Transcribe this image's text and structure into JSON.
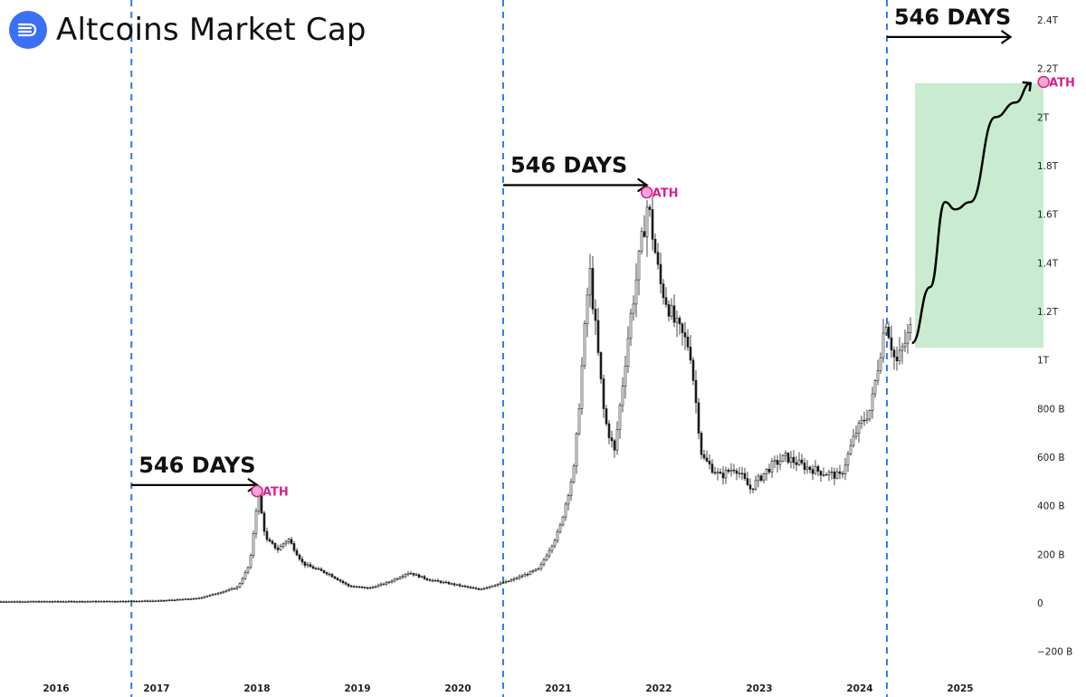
{
  "header": {
    "title": "Altcoins Market Cap",
    "logo_icon": "stream-lines-logo-icon",
    "logo_color": "#3b6ff5"
  },
  "chart_data": {
    "type": "candlestick",
    "title": "Altcoins Market Cap",
    "y_axis": {
      "position": "right",
      "ticks": [
        {
          "v": -200,
          "label": "−200 B"
        },
        {
          "v": 0,
          "label": "0"
        },
        {
          "v": 200,
          "label": "200 B"
        },
        {
          "v": 400,
          "label": "400 B"
        },
        {
          "v": 600,
          "label": "600 B"
        },
        {
          "v": 800,
          "label": "800 B"
        },
        {
          "v": 1000,
          "label": "1T"
        },
        {
          "v": 1200,
          "label": "1.2T"
        },
        {
          "v": 1400,
          "label": "1.4T"
        },
        {
          "v": 1600,
          "label": "1.6T"
        },
        {
          "v": 1800,
          "label": "1.8T"
        },
        {
          "v": 2000,
          "label": "2T"
        },
        {
          "v": 2200,
          "label": "2.2T"
        },
        {
          "v": 2400,
          "label": "2.4T"
        }
      ],
      "unit": "billions USD"
    },
    "x_axis": {
      "labels": [
        "2016",
        "2017",
        "2018",
        "2019",
        "2020",
        "2021",
        "2022",
        "2023",
        "2024",
        "2025"
      ]
    },
    "series": [
      {
        "price_points": [
          [
            2015.5,
            5
          ],
          [
            2016.5,
            6
          ],
          [
            2017.0,
            8
          ],
          [
            2017.4,
            18
          ],
          [
            2017.6,
            40
          ],
          [
            2017.8,
            65
          ],
          [
            2017.92,
            160
          ],
          [
            2018.0,
            455
          ],
          [
            2018.08,
            260
          ],
          [
            2018.2,
            220
          ],
          [
            2018.3,
            265
          ],
          [
            2018.45,
            160
          ],
          [
            2018.7,
            120
          ],
          [
            2018.9,
            70
          ],
          [
            2019.1,
            60
          ],
          [
            2019.3,
            85
          ],
          [
            2019.5,
            125
          ],
          [
            2019.7,
            95
          ],
          [
            2019.9,
            80
          ],
          [
            2020.2,
            55
          ],
          [
            2020.5,
            90
          ],
          [
            2020.8,
            140
          ],
          [
            2021.0,
            300
          ],
          [
            2021.15,
            560
          ],
          [
            2021.3,
            1380
          ],
          [
            2021.45,
            760
          ],
          [
            2021.55,
            620
          ],
          [
            2021.7,
            1150
          ],
          [
            2021.88,
            1650
          ],
          [
            2022.0,
            1320
          ],
          [
            2022.15,
            1150
          ],
          [
            2022.3,
            1050
          ],
          [
            2022.42,
            600
          ],
          [
            2022.6,
            520
          ],
          [
            2022.75,
            560
          ],
          [
            2022.9,
            470
          ],
          [
            2023.1,
            560
          ],
          [
            2023.25,
            600
          ],
          [
            2023.45,
            560
          ],
          [
            2023.6,
            540
          ],
          [
            2023.8,
            520
          ],
          [
            2023.95,
            700
          ],
          [
            2024.1,
            800
          ],
          [
            2024.25,
            1170
          ],
          [
            2024.35,
            980
          ],
          [
            2024.5,
            1130
          ]
        ]
      }
    ],
    "projection": [
      [
        2024.52,
        1070
      ],
      [
        2024.7,
        1300
      ],
      [
        2024.85,
        1650
      ],
      [
        2024.95,
        1620
      ],
      [
        2025.1,
        1650
      ],
      [
        2025.35,
        2000
      ],
      [
        2025.55,
        2060
      ],
      [
        2025.7,
        2140
      ]
    ],
    "projection_box": {
      "x0": 2024.55,
      "x1": 2025.83,
      "y0": 1050,
      "y1": 2140,
      "color": "#c9ecd0"
    },
    "cycle_lines_x": [
      2016.75,
      2020.45,
      2024.27
    ],
    "annotations": [
      {
        "text": "546 DAYS",
        "x_start": 2016.75,
        "x_end": 2018.0,
        "y": 485
      },
      {
        "text": "546 DAYS",
        "x_start": 2020.45,
        "x_end": 2021.88,
        "y": 1720
      },
      {
        "text": "546 DAYS",
        "x_start": 2024.27,
        "x_end": 2025.5,
        "y": 2330
      }
    ],
    "ath_markers": [
      {
        "label": "ATH",
        "x": 2018.0,
        "y": 460
      },
      {
        "label": "ATH",
        "x": 2021.88,
        "y": 1690
      },
      {
        "label": "ATH",
        "x": 2025.83,
        "y": 2145
      }
    ],
    "colors": {
      "candles": "#1a1a1a",
      "cycle_line": "#2b7de9",
      "ath": "#d6208c",
      "ath_fill": "#f3a8d4"
    },
    "grid": false
  }
}
